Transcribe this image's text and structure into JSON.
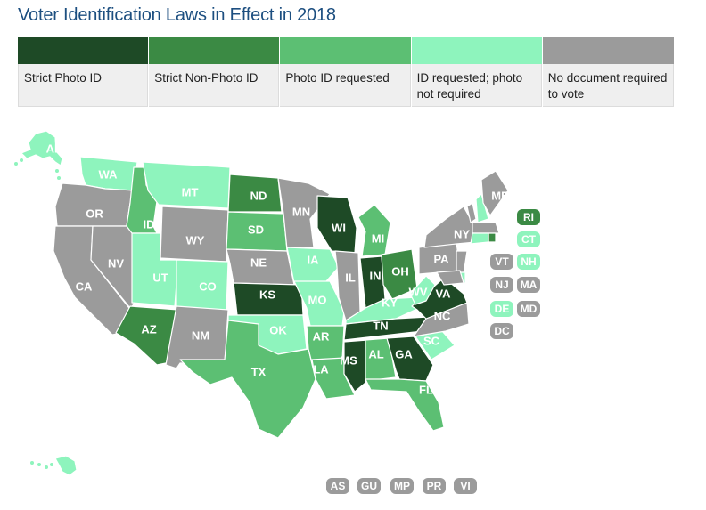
{
  "title": "Voter Identification Laws in Effect in 2018",
  "colors": {
    "strict_photo": "#1e4a26",
    "strict_nonphoto": "#3b8a44",
    "photo_requested": "#5cbf73",
    "id_requested": "#8ef4bd",
    "no_doc": "#9b9b9b"
  },
  "legend": [
    {
      "key": "strict_photo",
      "label": "Strict Photo ID"
    },
    {
      "key": "strict_nonphoto",
      "label": "Strict Non-Photo ID"
    },
    {
      "key": "photo_requested",
      "label": "Photo ID requested"
    },
    {
      "key": "id_requested",
      "label": "ID requested; photo not required"
    },
    {
      "key": "no_doc",
      "label": "No document required to vote"
    }
  ],
  "states": [
    {
      "abbr": "AK",
      "category": "id_requested"
    },
    {
      "abbr": "HI",
      "category": "id_requested"
    },
    {
      "abbr": "WA",
      "category": "id_requested"
    },
    {
      "abbr": "OR",
      "category": "no_doc"
    },
    {
      "abbr": "CA",
      "category": "no_doc"
    },
    {
      "abbr": "NV",
      "category": "no_doc"
    },
    {
      "abbr": "ID",
      "category": "photo_requested"
    },
    {
      "abbr": "MT",
      "category": "id_requested"
    },
    {
      "abbr": "WY",
      "category": "no_doc"
    },
    {
      "abbr": "UT",
      "category": "id_requested"
    },
    {
      "abbr": "CO",
      "category": "id_requested"
    },
    {
      "abbr": "AZ",
      "category": "strict_nonphoto"
    },
    {
      "abbr": "NM",
      "category": "no_doc"
    },
    {
      "abbr": "ND",
      "category": "strict_nonphoto"
    },
    {
      "abbr": "SD",
      "category": "photo_requested"
    },
    {
      "abbr": "NE",
      "category": "no_doc"
    },
    {
      "abbr": "KS",
      "category": "strict_photo"
    },
    {
      "abbr": "OK",
      "category": "id_requested"
    },
    {
      "abbr": "TX",
      "category": "photo_requested"
    },
    {
      "abbr": "MN",
      "category": "no_doc"
    },
    {
      "abbr": "IA",
      "category": "id_requested"
    },
    {
      "abbr": "MO",
      "category": "id_requested"
    },
    {
      "abbr": "AR",
      "category": "photo_requested"
    },
    {
      "abbr": "LA",
      "category": "photo_requested"
    },
    {
      "abbr": "WI",
      "category": "strict_photo"
    },
    {
      "abbr": "IL",
      "category": "no_doc"
    },
    {
      "abbr": "MI",
      "category": "photo_requested"
    },
    {
      "abbr": "IN",
      "category": "strict_photo"
    },
    {
      "abbr": "OH",
      "category": "strict_nonphoto"
    },
    {
      "abbr": "KY",
      "category": "id_requested"
    },
    {
      "abbr": "TN",
      "category": "strict_photo"
    },
    {
      "abbr": "MS",
      "category": "strict_photo"
    },
    {
      "abbr": "AL",
      "category": "photo_requested"
    },
    {
      "abbr": "GA",
      "category": "strict_photo"
    },
    {
      "abbr": "FL",
      "category": "photo_requested"
    },
    {
      "abbr": "SC",
      "category": "id_requested"
    },
    {
      "abbr": "NC",
      "category": "no_doc"
    },
    {
      "abbr": "VA",
      "category": "strict_photo"
    },
    {
      "abbr": "WV",
      "category": "id_requested"
    },
    {
      "abbr": "PA",
      "category": "no_doc"
    },
    {
      "abbr": "NY",
      "category": "no_doc"
    },
    {
      "abbr": "VT",
      "category": "no_doc"
    },
    {
      "abbr": "NH",
      "category": "id_requested"
    },
    {
      "abbr": "ME",
      "category": "no_doc"
    },
    {
      "abbr": "MA",
      "category": "no_doc"
    },
    {
      "abbr": "RI",
      "category": "strict_nonphoto"
    },
    {
      "abbr": "CT",
      "category": "id_requested"
    },
    {
      "abbr": "NJ",
      "category": "no_doc"
    },
    {
      "abbr": "DE",
      "category": "id_requested"
    },
    {
      "abbr": "MD",
      "category": "no_doc"
    },
    {
      "abbr": "DC",
      "category": "no_doc"
    },
    {
      "abbr": "AS",
      "category": "no_doc"
    },
    {
      "abbr": "GU",
      "category": "no_doc"
    },
    {
      "abbr": "MP",
      "category": "no_doc"
    },
    {
      "abbr": "PR",
      "category": "no_doc"
    },
    {
      "abbr": "VI",
      "category": "no_doc"
    }
  ]
}
